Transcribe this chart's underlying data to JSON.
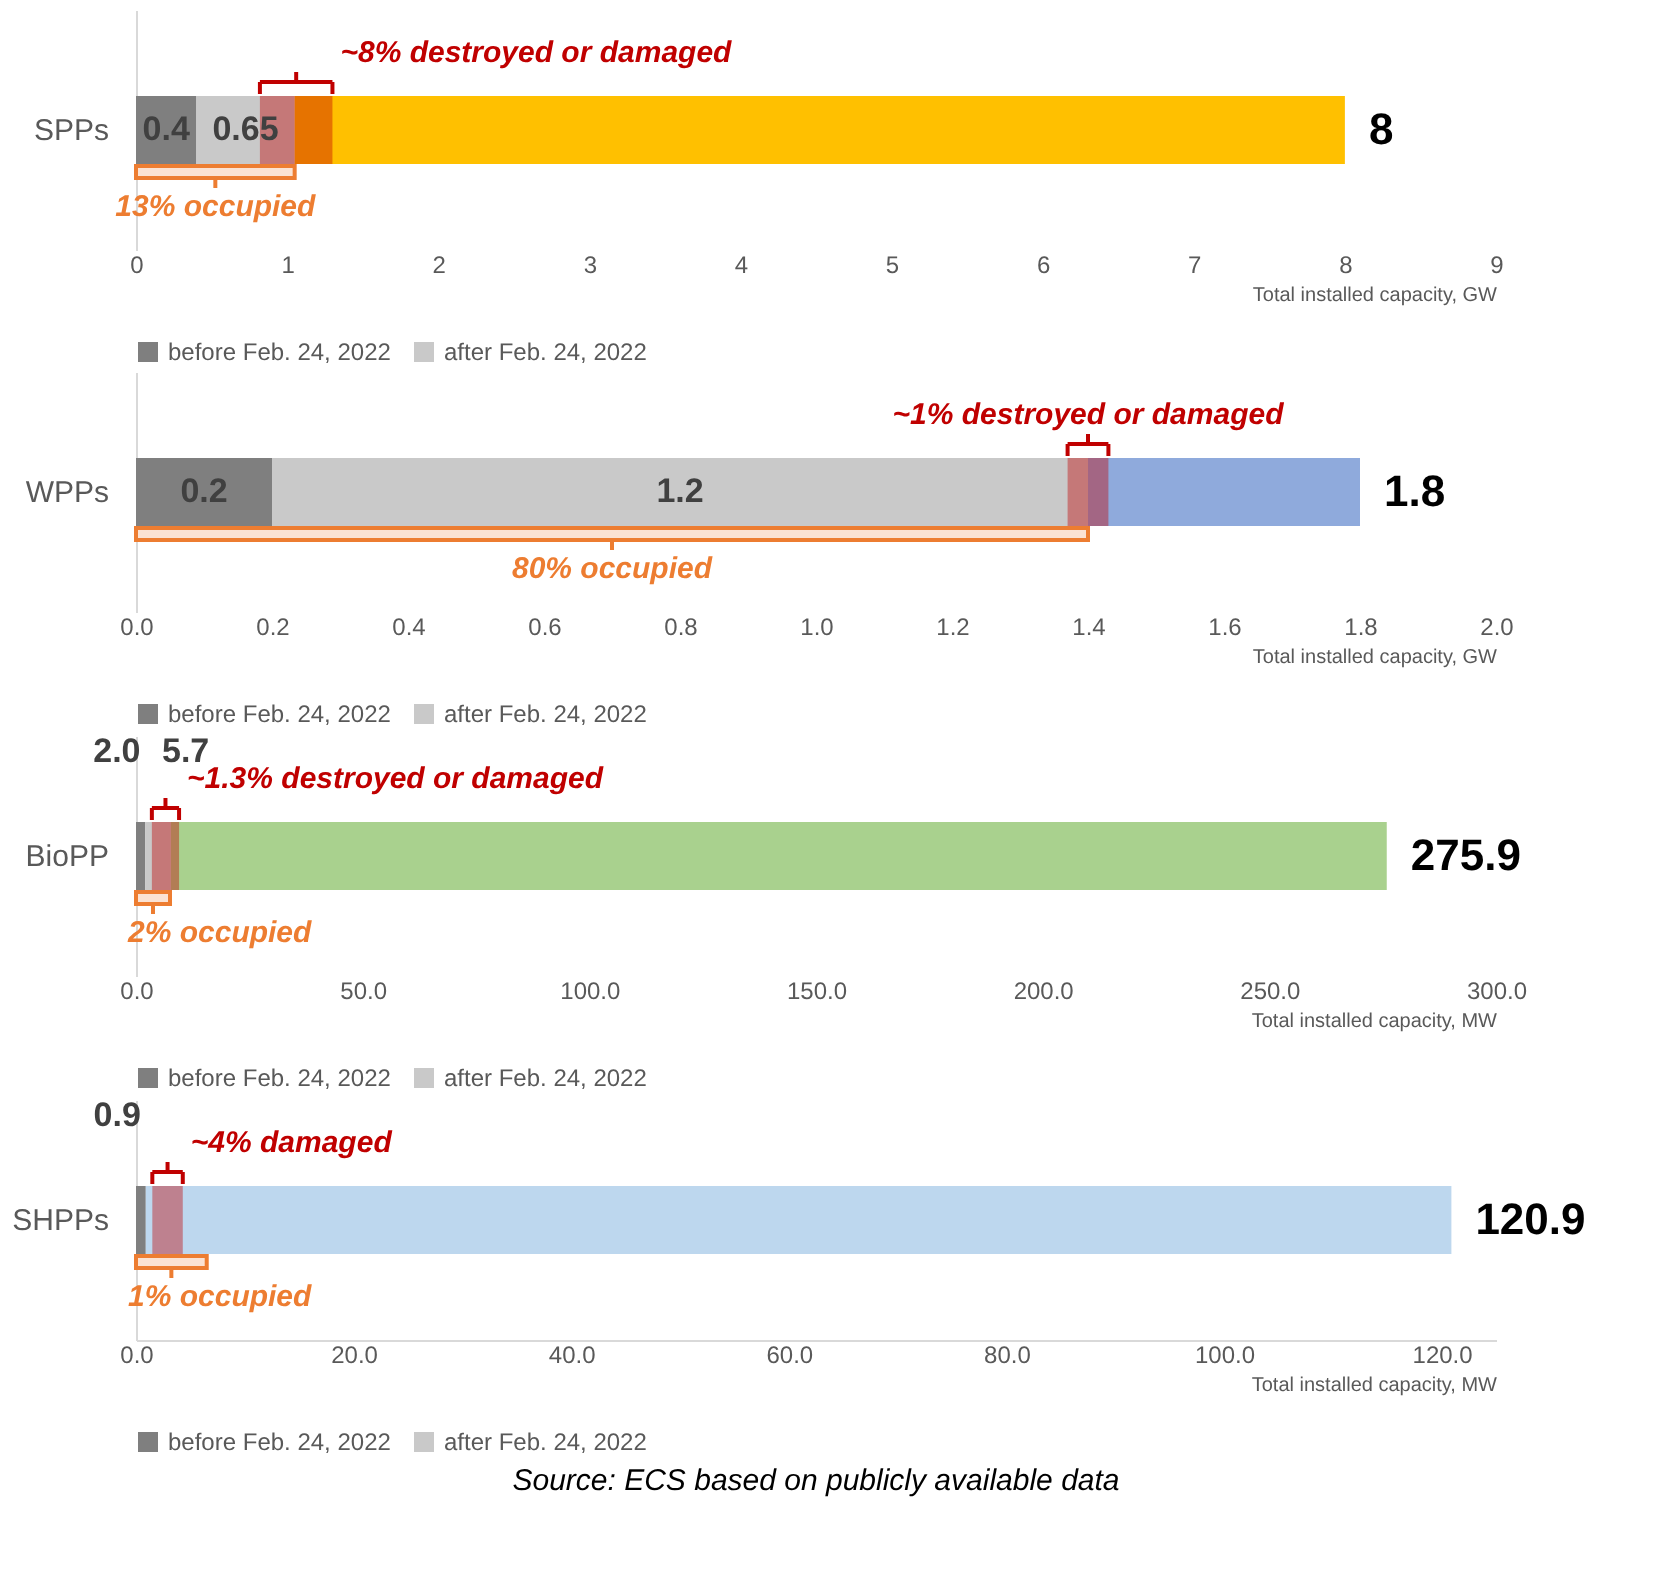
{
  "chart_data": [
    {
      "type": "bar",
      "orientation": "horizontal",
      "stacked": true,
      "categories": [
        "SPPs"
      ],
      "series": [
        {
          "name": "before Feb. 24, 2022",
          "color": "#7f7f7f",
          "values": [
            0.4
          ],
          "value_labels": [
            "0.4"
          ]
        },
        {
          "name": "after Feb. 24, 2022",
          "color": "#c9c9c9",
          "values": [
            0.65
          ],
          "value_labels": [
            "0.65"
          ]
        },
        {
          "color": "#ffc000",
          "values": [
            6.95
          ]
        }
      ],
      "totals": [
        "8"
      ],
      "xlim": [
        0,
        9
      ],
      "xticks": [
        0,
        1,
        2,
        3,
        4,
        5,
        6,
        7,
        8,
        9
      ],
      "xlabel": "Total installed capacity, GW",
      "legend": "bottom",
      "grid": false,
      "bands": [
        {
          "axis": "x",
          "from": 0.82,
          "to": 1.3,
          "label": "~8% destroyed or damaged",
          "color": "#c00000"
        },
        {
          "axis": "x",
          "from": 0,
          "to": 1.05,
          "label": "13% occupied",
          "color": "#ed7d31"
        }
      ]
    },
    {
      "type": "bar",
      "orientation": "horizontal",
      "stacked": true,
      "categories": [
        "WPPs"
      ],
      "series": [
        {
          "name": "before Feb. 24, 2022",
          "color": "#7f7f7f",
          "values": [
            0.2
          ],
          "value_labels": [
            "0.2"
          ]
        },
        {
          "name": "after Feb. 24, 2022",
          "color": "#c9c9c9",
          "values": [
            1.2
          ],
          "value_labels": [
            "1.2"
          ]
        },
        {
          "color": "#8faadc",
          "values": [
            0.4
          ]
        }
      ],
      "totals": [
        "1.8"
      ],
      "xlim": [
        0,
        2
      ],
      "xticks": [
        {
          "value": 0,
          "label": "0.0"
        },
        0.2,
        0.4,
        0.6,
        0.8,
        {
          "value": 1,
          "label": "1.0"
        },
        1.2,
        1.4,
        1.6,
        1.8,
        {
          "value": 2,
          "label": "2.0"
        }
      ],
      "xlabel": "Total installed capacity, GW",
      "legend": "bottom",
      "grid": false,
      "bands": [
        {
          "axis": "x",
          "from": 1.37,
          "to": 1.43,
          "label": "~1% destroyed or damaged",
          "color": "#c00000"
        },
        {
          "axis": "x",
          "from": 0,
          "to": 1.4,
          "label": "80% occupied",
          "color": "#ed7d31"
        }
      ]
    },
    {
      "type": "bar",
      "orientation": "horizontal",
      "stacked": true,
      "categories": [
        "BioPP"
      ],
      "series": [
        {
          "name": "before Feb. 24, 2022",
          "color": "#7f7f7f",
          "values": [
            2.0
          ],
          "value_labels": [
            "2.0"
          ]
        },
        {
          "name": "after Feb. 24, 2022",
          "color": "#c9c9c9",
          "values": [
            5.7
          ],
          "value_labels": [
            "5.7"
          ]
        },
        {
          "color": "#a9d18e",
          "values": [
            268.2
          ]
        }
      ],
      "totals": [
        "275.9"
      ],
      "xlim": [
        0,
        300
      ],
      "xticks": [
        {
          "value": 0,
          "label": "0.0"
        },
        {
          "value": 50,
          "label": "50.0"
        },
        {
          "value": 100,
          "label": "100.0"
        },
        {
          "value": 150,
          "label": "150.0"
        },
        {
          "value": 200,
          "label": "200.0"
        },
        {
          "value": 250,
          "label": "250.0"
        },
        {
          "value": 300,
          "label": "300.0"
        }
      ],
      "xlabel": "Total installed capacity, MW",
      "legend": "bottom",
      "grid": false,
      "bands": [
        {
          "axis": "x",
          "from": 3.5,
          "to": 9.5,
          "label": "~1.3% destroyed or damaged",
          "color": "#c00000"
        },
        {
          "axis": "x",
          "from": 0,
          "to": 7.5,
          "label": "2% occupied",
          "color": "#ed7d31"
        }
      ]
    },
    {
      "type": "bar",
      "orientation": "horizontal",
      "stacked": true,
      "categories": [
        "SHPPs"
      ],
      "series": [
        {
          "name": "before Feb. 24, 2022",
          "color": "#7f7f7f",
          "values": [
            0.9
          ],
          "value_labels": [
            "0.9"
          ]
        },
        {
          "name": "after Feb. 24, 2022",
          "color": "#c9c9c9",
          "values": [
            null
          ]
        },
        {
          "color": "#bdd7ee",
          "values": [
            120.0
          ]
        }
      ],
      "totals": [
        "120.9"
      ],
      "xlim": [
        0,
        125
      ],
      "xticks": [
        {
          "value": 0,
          "label": "0.0"
        },
        {
          "value": 20,
          "label": "20.0"
        },
        {
          "value": 40,
          "label": "40.0"
        },
        {
          "value": 60,
          "label": "60.0"
        },
        {
          "value": 80,
          "label": "80.0"
        },
        {
          "value": 100,
          "label": "100.0"
        },
        {
          "value": 120,
          "label": "120.0"
        }
      ],
      "xlabel": "Total installed capacity, MW",
      "legend": "bottom",
      "grid": false,
      "bands": [
        {
          "axis": "x",
          "from": 1.5,
          "to": 4.3,
          "label": "~4% damaged",
          "color": "#c00000"
        },
        {
          "axis": "x",
          "from": 0,
          "to": 6.5,
          "label": "1% occupied",
          "color": "#ed7d31"
        }
      ],
      "annotations": [
        "Source: ECS based on publicly available data"
      ]
    }
  ]
}
